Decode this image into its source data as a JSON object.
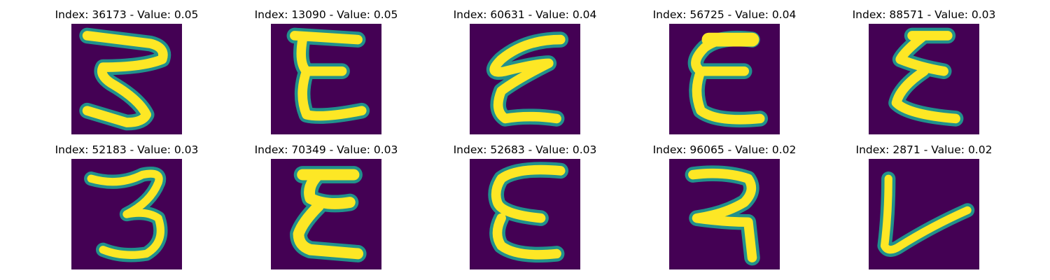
{
  "colors": {
    "background": "#440154",
    "stroke_core": "#fde725",
    "stroke_edge": "#21918c",
    "stroke_mid": "#5ec962"
  },
  "panels": [
    {
      "title": "Index: 36173 - Value: 0.05"
    },
    {
      "title": "Index: 13090 - Value: 0.05"
    },
    {
      "title": "Index: 60631 - Value: 0.04"
    },
    {
      "title": "Index: 56725 - Value: 0.04"
    },
    {
      "title": "Index: 88571 - Value: 0.03"
    },
    {
      "title": "Index: 52183 - Value: 0.03"
    },
    {
      "title": "Index: 70349 - Value: 0.03"
    },
    {
      "title": "Index: 52683 - Value: 0.03"
    },
    {
      "title": "Index: 96065 - Value: 0.02"
    },
    {
      "title": "Index: 2871 - Value: 0.02"
    }
  ]
}
